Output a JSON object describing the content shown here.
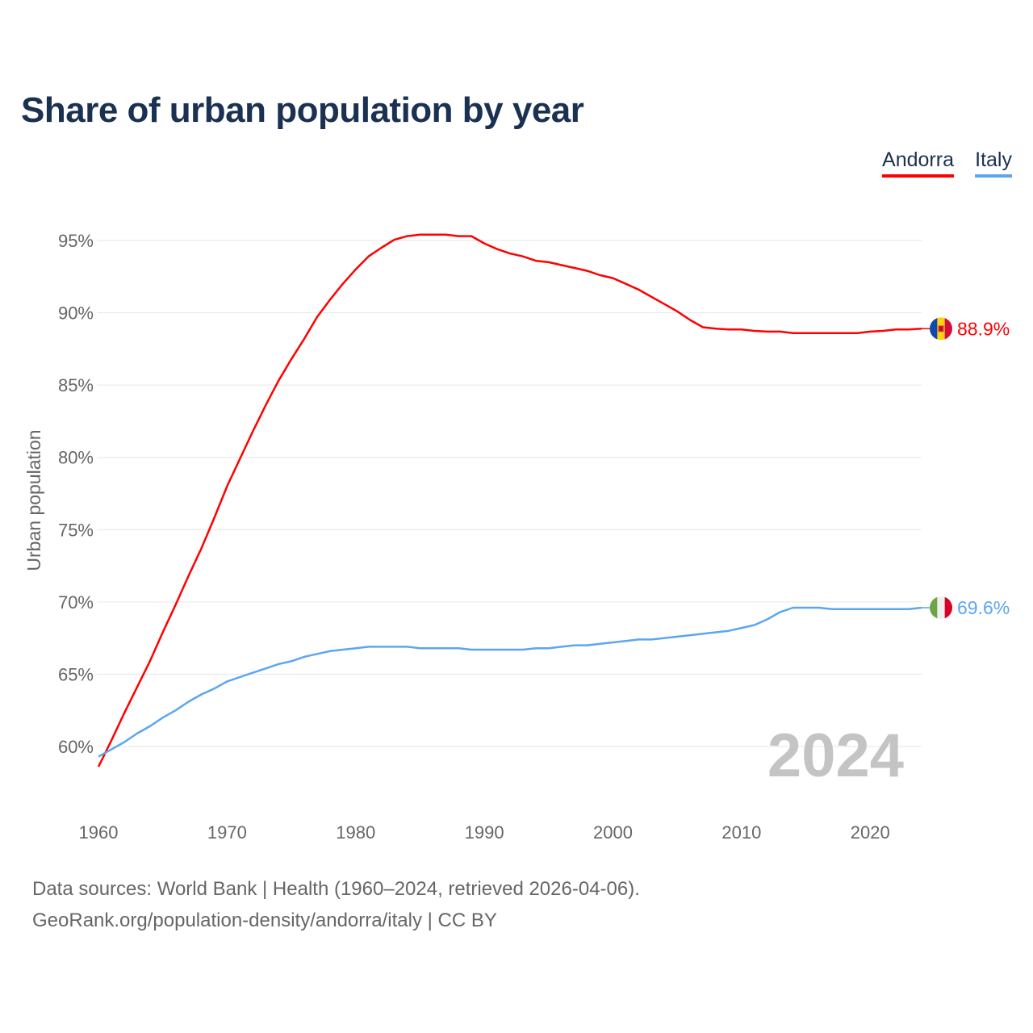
{
  "title": "Share of urban population by year",
  "footer": {
    "sources": "Data sources: World Bank | Health (1960–2024, retrieved 2026-04-06).",
    "credit": "GeoRank.org/population-density/andorra/italy | CC BY"
  },
  "chart_data": {
    "type": "line",
    "title": "Share of urban population by year",
    "xlabel": "",
    "ylabel": "Urban population",
    "xlim": [
      1960,
      2024
    ],
    "ylim": [
      57.5,
      97
    ],
    "yticks": [
      60,
      65,
      70,
      75,
      80,
      85,
      90,
      95
    ],
    "ytick_labels": [
      "60%",
      "65%",
      "70%",
      "75%",
      "80%",
      "85%",
      "90%",
      "95%"
    ],
    "xticks": [
      1960,
      1970,
      1980,
      1990,
      2000,
      2010,
      2020
    ],
    "xtick_labels": [
      "1960",
      "1970",
      "1980",
      "1990",
      "2000",
      "2010",
      "2020"
    ],
    "grid": true,
    "legend_position": "top-right",
    "year_watermark": "2024",
    "x": [
      1960,
      1961,
      1962,
      1963,
      1964,
      1965,
      1966,
      1967,
      1968,
      1969,
      1970,
      1971,
      1972,
      1973,
      1974,
      1975,
      1976,
      1977,
      1978,
      1979,
      1980,
      1981,
      1982,
      1983,
      1984,
      1985,
      1986,
      1987,
      1988,
      1989,
      1990,
      1991,
      1992,
      1993,
      1994,
      1995,
      1996,
      1997,
      1998,
      1999,
      2000,
      2001,
      2002,
      2003,
      2004,
      2005,
      2006,
      2007,
      2008,
      2009,
      2010,
      2011,
      2012,
      2013,
      2014,
      2015,
      2016,
      2017,
      2018,
      2019,
      2020,
      2021,
      2022,
      2023,
      2024
    ],
    "series": [
      {
        "name": "Andorra",
        "color": "#ff0000",
        "end_label": "88.9%",
        "flag": "andorra-flag",
        "values": [
          58.6,
          60.4,
          62.3,
          64.1,
          65.9,
          67.9,
          69.8,
          71.8,
          73.7,
          75.8,
          78.0,
          79.9,
          81.8,
          83.6,
          85.3,
          86.8,
          88.2,
          89.7,
          90.9,
          92.0,
          93.0,
          93.9,
          94.5,
          95.05,
          95.3,
          95.4,
          95.4,
          95.4,
          95.3,
          95.3,
          94.8,
          94.4,
          94.1,
          93.9,
          93.6,
          93.5,
          93.3,
          93.1,
          92.9,
          92.6,
          92.4,
          92.0,
          91.6,
          91.1,
          90.6,
          90.1,
          89.5,
          89.0,
          88.9,
          88.85,
          88.85,
          88.75,
          88.7,
          88.7,
          88.6,
          88.6,
          88.6,
          88.6,
          88.6,
          88.6,
          88.7,
          88.75,
          88.85,
          88.85,
          88.9
        ]
      },
      {
        "name": "Italy",
        "color": "#5ca6f0",
        "end_label": "69.6%",
        "flag": "italy-flag",
        "values": [
          59.3,
          59.8,
          60.3,
          60.9,
          61.4,
          62.0,
          62.5,
          63.1,
          63.6,
          64.0,
          64.5,
          64.8,
          65.1,
          65.4,
          65.7,
          65.9,
          66.2,
          66.4,
          66.6,
          66.7,
          66.8,
          66.9,
          66.9,
          66.9,
          66.9,
          66.8,
          66.8,
          66.8,
          66.8,
          66.7,
          66.7,
          66.7,
          66.7,
          66.7,
          66.8,
          66.8,
          66.9,
          67.0,
          67.0,
          67.1,
          67.2,
          67.3,
          67.4,
          67.4,
          67.5,
          67.6,
          67.7,
          67.8,
          67.9,
          68.0,
          68.2,
          68.4,
          68.8,
          69.3,
          69.6,
          69.6,
          69.6,
          69.5,
          69.5,
          69.5,
          69.5,
          69.5,
          69.5,
          69.5,
          69.6
        ]
      }
    ]
  }
}
